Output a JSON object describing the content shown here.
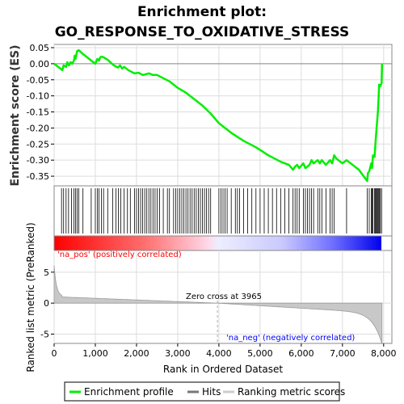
{
  "chart_data": {
    "type": "line",
    "title_line1": "Enrichment plot:",
    "title_line2": "GO_RESPONSE_TO_OXIDATIVE_STRESS",
    "xlabel": "Rank in Ordered Dataset",
    "ylabel_top": "Enrichment score (ES)",
    "ylabel_bottom": "Ranked list metric (PreRanked)",
    "xlim": [
      0,
      8200
    ],
    "xticks": [
      0,
      1000,
      2000,
      3000,
      4000,
      5000,
      6000,
      7000,
      8000
    ],
    "xtick_labels": [
      "0",
      "1,000",
      "2,000",
      "3,000",
      "4,000",
      "5,000",
      "6,000",
      "7,000",
      "8,000"
    ],
    "es_ylim": [
      -0.38,
      0.06
    ],
    "es_yticks": [
      0.05,
      0.0,
      -0.05,
      -0.1,
      -0.15,
      -0.2,
      -0.25,
      -0.3,
      -0.35
    ],
    "es_ytick_labels": [
      "0.05",
      "0.00",
      "-0.05",
      "-0.10",
      "-0.15",
      "-0.20",
      "-0.25",
      "-0.30",
      "-0.35"
    ],
    "metric_ylim": [
      -6.5,
      8.5
    ],
    "metric_yticks": [
      5,
      0,
      -5
    ],
    "metric_ytick_labels": [
      "5",
      "0",
      "-5"
    ],
    "grid": true,
    "legend_position": "bottom",
    "series": [
      {
        "name": "Enrichment profile",
        "color": "#00ee00",
        "x": [
          0,
          200,
          230,
          290,
          320,
          360,
          400,
          440,
          480,
          500,
          520,
          560,
          600,
          700,
          850,
          950,
          1000,
          1050,
          1090,
          1120,
          1150,
          1200,
          1300,
          1450,
          1550,
          1600,
          1650,
          1700,
          1800,
          1950,
          2050,
          2150,
          2250,
          2300,
          2400,
          2500,
          2650,
          2800,
          3000,
          3200,
          3400,
          3600,
          3800,
          4000,
          4300,
          4600,
          4900,
          5200,
          5500,
          5700,
          5800,
          5850,
          5900,
          5950,
          6050,
          6100,
          6200,
          6250,
          6300,
          6400,
          6450,
          6500,
          6600,
          6700,
          6750,
          6800,
          6850,
          7000,
          7100,
          7200,
          7400,
          7600,
          7620,
          7650,
          7700,
          7720,
          7740,
          7780,
          7800,
          7830,
          7860,
          7880,
          7890,
          7920,
          7950,
          7960
        ],
        "y": [
          0.0,
          -0.02,
          -0.005,
          -0.01,
          0.005,
          -0.005,
          0.005,
          0.0,
          0.01,
          0.025,
          0.015,
          0.04,
          0.042,
          0.03,
          0.015,
          0.005,
          0.0,
          0.015,
          0.01,
          0.02,
          0.022,
          0.02,
          0.012,
          -0.005,
          -0.012,
          -0.005,
          -0.015,
          -0.01,
          -0.02,
          -0.03,
          -0.028,
          -0.035,
          -0.032,
          -0.03,
          -0.035,
          -0.035,
          -0.045,
          -0.055,
          -0.075,
          -0.09,
          -0.11,
          -0.13,
          -0.155,
          -0.185,
          -0.215,
          -0.24,
          -0.26,
          -0.285,
          -0.305,
          -0.315,
          -0.33,
          -0.32,
          -0.315,
          -0.325,
          -0.31,
          -0.325,
          -0.315,
          -0.3,
          -0.31,
          -0.3,
          -0.31,
          -0.3,
          -0.315,
          -0.3,
          -0.31,
          -0.285,
          -0.295,
          -0.31,
          -0.3,
          -0.31,
          -0.33,
          -0.365,
          -0.34,
          -0.335,
          -0.31,
          -0.325,
          -0.285,
          -0.29,
          -0.25,
          -0.2,
          -0.15,
          -0.1,
          -0.065,
          -0.07,
          -0.06,
          0.0
        ]
      }
    ],
    "hits": [
      180,
      230,
      290,
      350,
      420,
      480,
      520,
      560,
      600,
      700,
      900,
      1000,
      1050,
      1090,
      1150,
      1200,
      1300,
      1420,
      1500,
      1560,
      1620,
      1700,
      1780,
      1850,
      1950,
      2000,
      2050,
      2100,
      2150,
      2200,
      2250,
      2300,
      2350,
      2400,
      2450,
      2500,
      2560,
      2650,
      2750,
      2800,
      2900,
      2950,
      3000,
      3050,
      3100,
      3150,
      3200,
      3250,
      3300,
      3350,
      3400,
      3450,
      3500,
      3550,
      3600,
      3650,
      3700,
      3750,
      3800,
      4000,
      4050,
      4100,
      4150,
      4200,
      4300,
      4400,
      4450,
      4500,
      4600,
      4700,
      4800,
      4900,
      5000,
      5100,
      5200,
      5300,
      5400,
      5500,
      5600,
      5700,
      5800,
      5850,
      5900,
      5950,
      6050,
      6100,
      6150,
      6200,
      6250,
      6300,
      6400,
      6450,
      6500,
      6600,
      6700,
      6750,
      6800,
      7100,
      7600,
      7650,
      7700,
      7720,
      7740,
      7780,
      7800,
      7820,
      7840,
      7860,
      7880,
      7900,
      7920,
      7950
    ],
    "zero_cross": 3965,
    "annotations": {
      "pos": "'na_pos' (positively correlated)",
      "neg": "'na_neg' (negatively correlated)",
      "zero": "Zero cross at 3965"
    },
    "legend": [
      "Enrichment profile",
      "Hits",
      "Ranking metric scores"
    ]
  }
}
